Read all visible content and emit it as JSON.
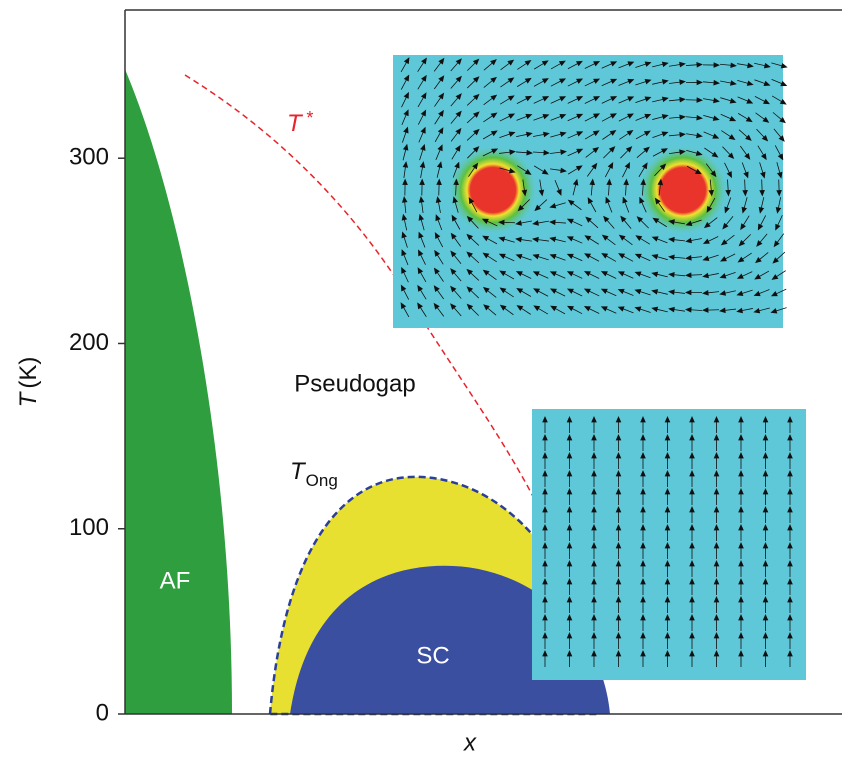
{
  "chart_data": {
    "type": "phase-diagram",
    "x_label": "x",
    "y_label": {
      "symbol": "T",
      "unit": "(K)"
    },
    "ylim": [
      0,
      380
    ],
    "yticks": [
      0,
      100,
      200,
      300
    ],
    "regions": [
      {
        "name": "AF",
        "color": "#2e9e3e",
        "peak": 348
      },
      {
        "name": "SC",
        "color": "#3a4fa0",
        "peak": 80
      }
    ],
    "pseudogap_label": "Pseudogap",
    "t_star": {
      "symbol": "T",
      "mark": "*",
      "color": "#e8232a"
    },
    "t_ong": {
      "symbol": "T",
      "subscript": "Ong",
      "peak": 128,
      "color": "#e8e030",
      "edge": "#2a3e9a"
    }
  }
}
